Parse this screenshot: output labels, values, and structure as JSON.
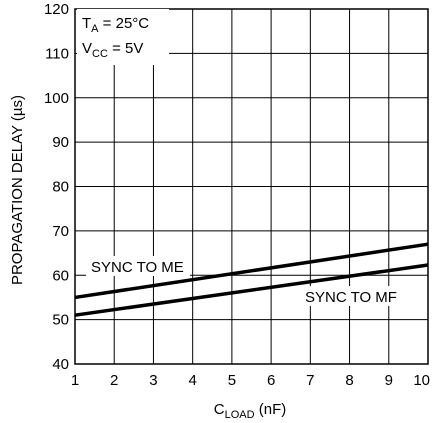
{
  "chart_data": {
    "type": "line",
    "xlabel_main": "C",
    "xlabel_sub": "LOAD",
    "xlabel_unit": " (nF)",
    "ylabel": "PROPAGATION DELAY (µs)",
    "xlim": [
      1,
      10
    ],
    "ylim": [
      40,
      120
    ],
    "x_ticks": [
      "1",
      "2",
      "3",
      "4",
      "5",
      "6",
      "7",
      "8",
      "9",
      "10"
    ],
    "y_ticks": [
      "40",
      "50",
      "60",
      "70",
      "80",
      "90",
      "100",
      "110",
      "120"
    ],
    "grid": true,
    "series": [
      {
        "name": "SYNC TO ME",
        "x": [
          1,
          10
        ],
        "y": [
          55,
          67
        ]
      },
      {
        "name": "SYNC TO MF",
        "x": [
          1,
          10
        ],
        "y": [
          51,
          62.3
        ]
      }
    ],
    "annotations": {
      "ta_main": "T",
      "ta_sub": "A",
      "ta_value": " = 25°C",
      "vcc_main": "V",
      "vcc_sub": "CC",
      "vcc_value": " = 5V"
    }
  }
}
